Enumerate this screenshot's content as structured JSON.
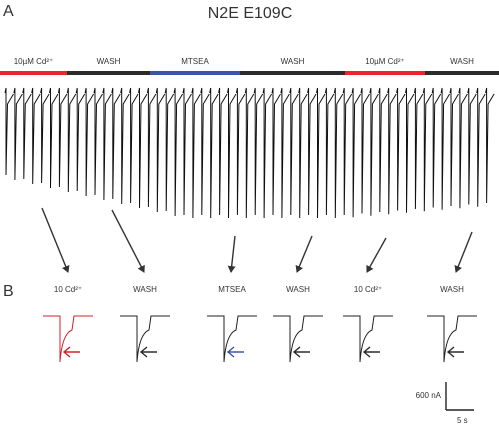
{
  "panel_a": {
    "label": "A",
    "title": "N2E E109C",
    "conditions": [
      {
        "label": "10µM Cd²⁺",
        "color": "#e8262c"
      },
      {
        "label": "WASH",
        "color": "#2b2b2b"
      },
      {
        "label": "MTSEA",
        "color": "#3a56a8"
      },
      {
        "label": "WASH",
        "color": "#2b2b2b"
      },
      {
        "label": "10µM Cd²⁺",
        "color": "#e8262c"
      },
      {
        "label": "WASH",
        "color": "#2b2b2b"
      }
    ]
  },
  "panel_b": {
    "label": "B",
    "traces": [
      {
        "label": "10 Cd²⁺",
        "color": "#d0222a"
      },
      {
        "label": "WASH",
        "color": "#2b2b2b"
      },
      {
        "label": "MTSEA",
        "color": "#3a56a8"
      },
      {
        "label": "WASH",
        "color": "#2b2b2b"
      },
      {
        "label": "10 Cd²⁺",
        "color": "#2b2b2b"
      },
      {
        "label": "WASH",
        "color": "#2b2b2b"
      }
    ]
  },
  "scale_bar": {
    "current": "600 nA",
    "time": "5 s"
  }
}
